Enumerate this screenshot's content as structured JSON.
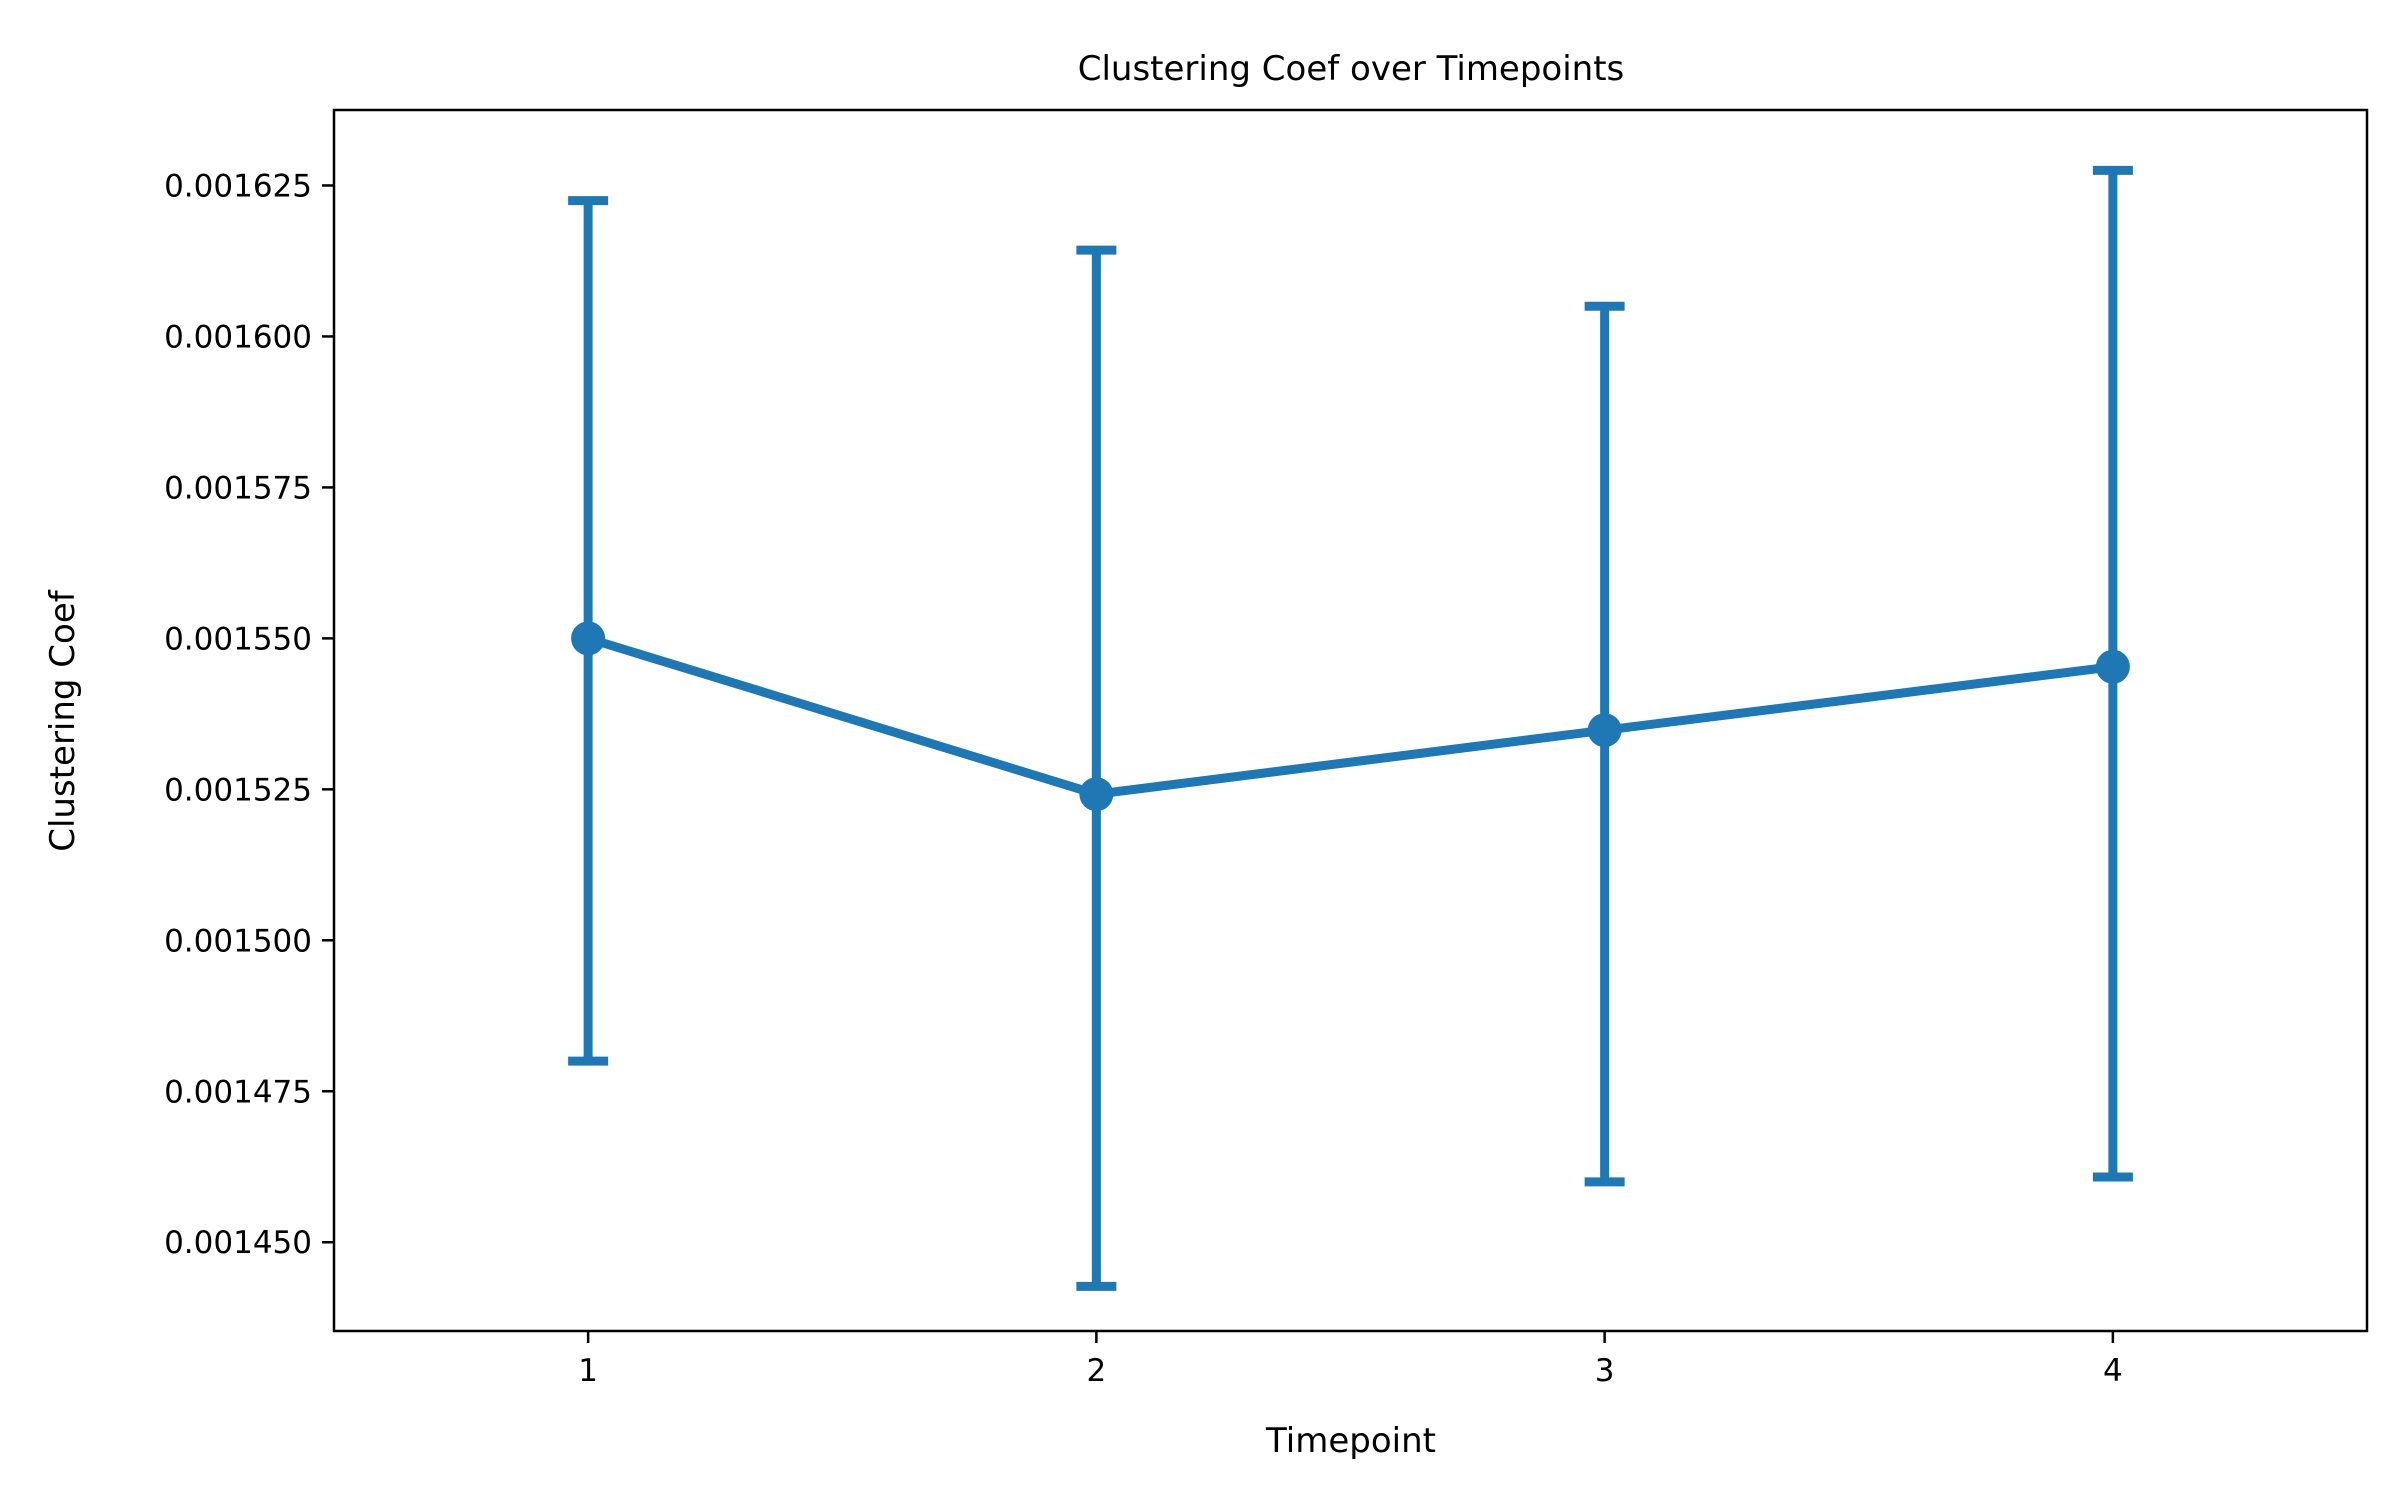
{
  "chart_data": {
    "type": "line",
    "title": "Clustering Coef over Timepoints",
    "xlabel": "Timepoint",
    "ylabel": "Clustering Coef",
    "x_ticks": [
      "1",
      "2",
      "3",
      "4"
    ],
    "y_ticks": [
      "0.001450",
      "0.001475",
      "0.001500",
      "0.001525",
      "0.001550",
      "0.001575",
      "0.001600",
      "0.001625"
    ],
    "xlim": [
      0.5,
      4.5
    ],
    "ylim": [
      0.0014353,
      0.0016375
    ],
    "grid": false,
    "series": [
      {
        "color": "#1f77b4",
        "x": [
          1,
          2,
          3,
          4
        ],
        "values": [
          0.00155,
          0.0015242,
          0.0015348,
          0.0015453
        ],
        "error_lower": [
          0.00148,
          0.0014427,
          0.00146,
          0.0014608
        ],
        "error_upper": [
          0.0016225,
          0.0016143,
          0.001605,
          0.0016275
        ]
      }
    ]
  }
}
